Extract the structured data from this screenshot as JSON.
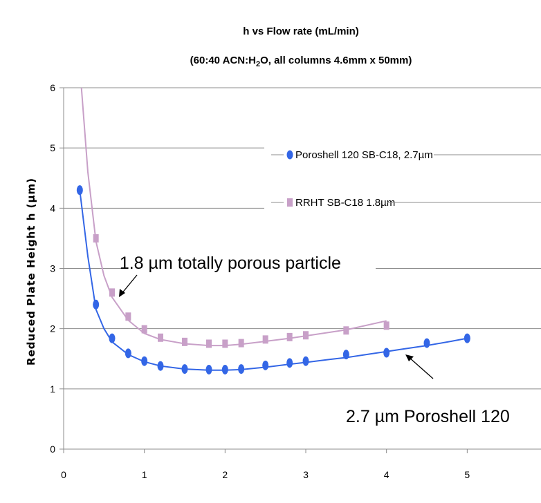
{
  "chart_data": {
    "type": "line",
    "title": "h vs Flow rate (mL/min)",
    "subtitle_pre": "(60:40 ACN:H",
    "subtitle_sub": "2",
    "subtitle_post": "O, all columns 4.6mm x 50mm)",
    "ylabel": "Reduced Plate Height h (µm)",
    "xlabel": "",
    "xlim": [
      0,
      6
    ],
    "ylim": [
      0,
      6
    ],
    "xticks": [
      "0",
      "1",
      "2",
      "3",
      "4",
      "5"
    ],
    "yticks": [
      "0",
      "1",
      "2",
      "3",
      "4",
      "5",
      "6"
    ],
    "grid": "horizontal",
    "legend_position": "right",
    "series": [
      {
        "name": "Poroshell 120 SB-C18, 2.7µm",
        "color": "#3366e6",
        "marker": "circle",
        "x": [
          0.2,
          0.4,
          0.6,
          0.8,
          1.0,
          1.2,
          1.5,
          1.8,
          2.0,
          2.2,
          2.5,
          2.8,
          3.0,
          3.5,
          4.0,
          4.5,
          5.0
        ],
        "y": [
          4.3,
          2.4,
          1.84,
          1.59,
          1.46,
          1.38,
          1.33,
          1.32,
          1.32,
          1.33,
          1.39,
          1.43,
          1.46,
          1.57,
          1.6,
          1.76,
          1.84
        ],
        "curve_x": [
          0.2,
          0.3,
          0.4,
          0.5,
          0.6,
          0.8,
          1.0,
          1.2,
          1.5,
          1.8,
          2.0,
          2.2,
          2.5,
          2.8,
          3.0,
          3.3,
          3.5,
          3.8,
          4.0,
          4.2,
          4.5,
          4.8,
          5.0
        ],
        "curve_y": [
          4.3,
          3.2,
          2.32,
          2.0,
          1.78,
          1.57,
          1.45,
          1.38,
          1.33,
          1.31,
          1.31,
          1.32,
          1.36,
          1.41,
          1.44,
          1.49,
          1.52,
          1.58,
          1.62,
          1.66,
          1.72,
          1.79,
          1.84
        ]
      },
      {
        "name": "RRHT SB-C18 1.8µm",
        "color": "#c8a0c8",
        "marker": "square",
        "x": [
          0.4,
          0.6,
          0.8,
          1.0,
          1.2,
          1.5,
          1.8,
          2.0,
          2.2,
          2.5,
          2.8,
          3.0,
          3.5,
          4.0
        ],
        "y": [
          3.5,
          2.6,
          2.2,
          1.99,
          1.85,
          1.78,
          1.75,
          1.75,
          1.76,
          1.82,
          1.86,
          1.89,
          1.97,
          2.05
        ],
        "curve_x": [
          0.22,
          0.3,
          0.4,
          0.5,
          0.6,
          0.8,
          1.0,
          1.2,
          1.5,
          1.8,
          2.0,
          2.2,
          2.5,
          2.8,
          3.0,
          3.5,
          4.0
        ],
        "curve_y": [
          6.0,
          4.6,
          3.45,
          2.88,
          2.52,
          2.14,
          1.92,
          1.82,
          1.75,
          1.72,
          1.72,
          1.74,
          1.79,
          1.84,
          1.88,
          1.98,
          2.13
        ]
      }
    ],
    "annotations": [
      {
        "text": "1.8 µm totally porous particle",
        "x": 0.65,
        "y": 2.42
      },
      {
        "text": "2.7 µm Poroshell 120",
        "x": 4.3,
        "y": 1.05
      }
    ]
  }
}
